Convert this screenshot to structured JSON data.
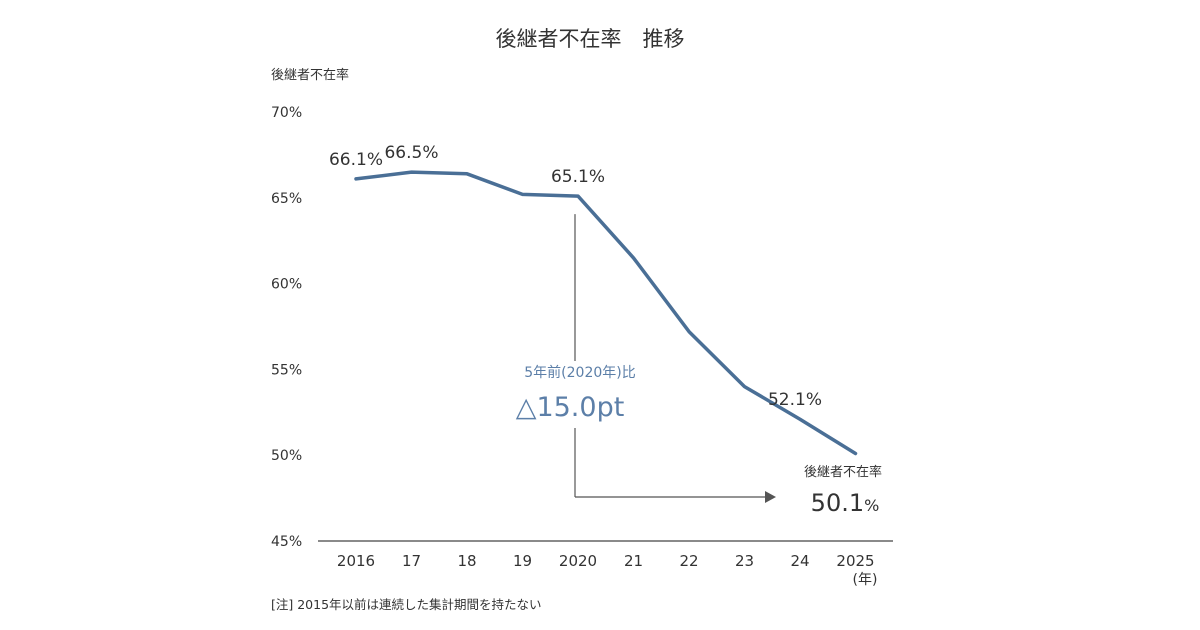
{
  "chart_data": {
    "type": "line",
    "title": "後継者不在率　推移",
    "ylabel": "後継者不在率",
    "xlabel": "(年)",
    "ylim": [
      45,
      70
    ],
    "y_ticks": [
      70,
      65,
      60,
      55,
      50,
      45
    ],
    "y_tick_labels": [
      "70%",
      "65%",
      "60%",
      "55%",
      "50%",
      "45%"
    ],
    "categories": [
      "2016",
      "17",
      "18",
      "19",
      "2020",
      "21",
      "22",
      "23",
      "24",
      "2025"
    ],
    "series": [
      {
        "name": "後継者不在率",
        "values": [
          66.1,
          66.5,
          66.4,
          65.2,
          65.1,
          61.5,
          57.2,
          54.0,
          52.1,
          50.1
        ]
      }
    ],
    "data_labels": [
      {
        "index": 0,
        "text": "66.1%"
      },
      {
        "index": 1,
        "text": "66.5%"
      },
      {
        "index": 4,
        "text": "65.1%"
      },
      {
        "index": 8,
        "text": "52.1%"
      }
    ],
    "annotation": {
      "comparison_label": "5年前(2020年)比",
      "delta": "△15.0pt",
      "final_label": "後継者不在率",
      "final_value": "50.1",
      "final_unit": "%"
    },
    "note": "[注]  2015年以前は連続した集計期間を持たない",
    "colors": {
      "line": "#4a6f96",
      "text": "#333333",
      "annotation": "#5c7fa8",
      "arrow": "#555555",
      "axis": "#444444"
    }
  }
}
